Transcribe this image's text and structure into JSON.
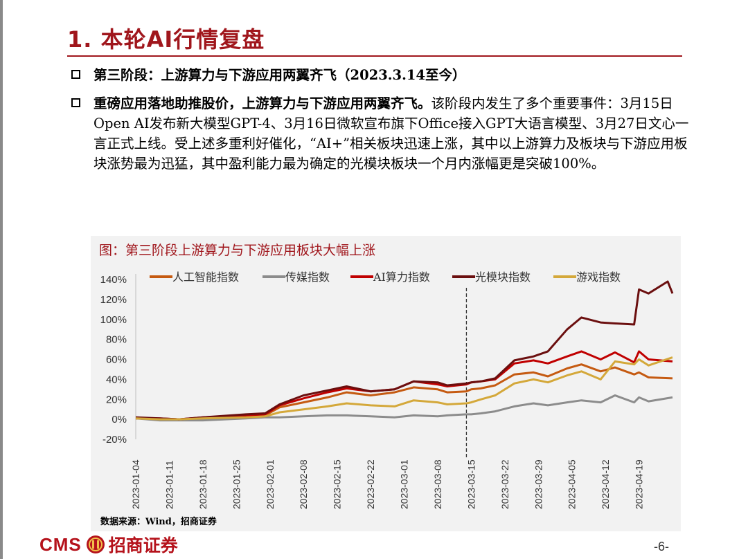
{
  "slide": {
    "title": "1. 本轮AI行情复盘"
  },
  "bullets": {
    "b1": "第三阶段：上游算力与下游应用两翼齐飞（2023.3.14至今）",
    "b2_bold": "重磅应用落地助推股价，上游算力与下游应用两翼齐飞。",
    "b2_text": "该阶段内发生了多个重要事件：3月15日Open AI发布新大模型GPT-4、3月16日微软宣布旗下Office接入GPT大语言模型、3月27日文心一言正式上线。受上述多重利好催化，“AI+”相关板块迅速上涨，其中以上游算力及板块与下游应用板块涨势最为迅猛，其中盈利能力最为确定的光模块板块一个月内涨幅更是突破100%。"
  },
  "chart_title": "图：第三阶段上游算力与下游应用板块大幅上涨",
  "source": "数据来源：Wind，招商证券",
  "footer": {
    "logo_cms": "CMS",
    "logo_cn": "招商证券",
    "page": "-6-"
  },
  "chart_data": {
    "type": "line",
    "title": "图：第三阶段上游算力与下游应用板块大幅上涨",
    "xlabel": "",
    "ylabel": "",
    "x_ticks": [
      "2023-01-04",
      "2023-01-11",
      "2023-01-18",
      "2023-01-25",
      "2023-02-01",
      "2023-02-08",
      "2023-02-15",
      "2023-02-22",
      "2023-03-01",
      "2023-03-08",
      "2023-03-15",
      "2023-03-22",
      "2023-03-29",
      "2023-04-05",
      "2023-04-12",
      "2023-04-19"
    ],
    "x_range": [
      "2023-01-04",
      "2023-04-26"
    ],
    "y_ticks": [
      -20,
      0,
      20,
      40,
      60,
      80,
      100,
      120,
      140
    ],
    "y_tick_labels": [
      "-20%",
      "0%",
      "20%",
      "40%",
      "60%",
      "80%",
      "100%",
      "120%",
      "140%"
    ],
    "ylim": [
      -20,
      140
    ],
    "grid": false,
    "legend_position": "top",
    "marker_line": {
      "x": "2023-03-14",
      "style": "dashed"
    },
    "series": [
      {
        "name": "人工智能指数",
        "color": "#c55a11",
        "points": [
          [
            "2023-01-04",
            1
          ],
          [
            "2023-01-09",
            0
          ],
          [
            "2023-01-13",
            0
          ],
          [
            "2023-01-18",
            1
          ],
          [
            "2023-01-27",
            3
          ],
          [
            "2023-01-31",
            4
          ],
          [
            "2023-02-03",
            12
          ],
          [
            "2023-02-08",
            17
          ],
          [
            "2023-02-13",
            22
          ],
          [
            "2023-02-17",
            27
          ],
          [
            "2023-02-22",
            24
          ],
          [
            "2023-02-27",
            27
          ],
          [
            "2023-03-03",
            32
          ],
          [
            "2023-03-08",
            30
          ],
          [
            "2023-03-10",
            27
          ],
          [
            "2023-03-14",
            28
          ],
          [
            "2023-03-15",
            30
          ],
          [
            "2023-03-17",
            31
          ],
          [
            "2023-03-20",
            34
          ],
          [
            "2023-03-24",
            45
          ],
          [
            "2023-03-28",
            47
          ],
          [
            "2023-03-31",
            43
          ],
          [
            "2023-04-04",
            51
          ],
          [
            "2023-04-07",
            55
          ],
          [
            "2023-04-11",
            48
          ],
          [
            "2023-04-14",
            52
          ],
          [
            "2023-04-18",
            45
          ],
          [
            "2023-04-19",
            47
          ],
          [
            "2023-04-21",
            42
          ],
          [
            "2023-04-26",
            41
          ]
        ]
      },
      {
        "name": "传媒指数",
        "color": "#8c8c8c",
        "points": [
          [
            "2023-01-04",
            1
          ],
          [
            "2023-01-09",
            -1
          ],
          [
            "2023-01-13",
            -1
          ],
          [
            "2023-01-18",
            -1
          ],
          [
            "2023-01-27",
            1
          ],
          [
            "2023-01-31",
            2
          ],
          [
            "2023-02-03",
            2
          ],
          [
            "2023-02-08",
            3
          ],
          [
            "2023-02-13",
            4
          ],
          [
            "2023-02-17",
            4
          ],
          [
            "2023-02-22",
            3
          ],
          [
            "2023-02-27",
            2
          ],
          [
            "2023-03-03",
            4
          ],
          [
            "2023-03-08",
            3
          ],
          [
            "2023-03-10",
            4
          ],
          [
            "2023-03-14",
            5
          ],
          [
            "2023-03-15",
            5
          ],
          [
            "2023-03-17",
            6
          ],
          [
            "2023-03-20",
            8
          ],
          [
            "2023-03-24",
            13
          ],
          [
            "2023-03-28",
            16
          ],
          [
            "2023-03-31",
            14
          ],
          [
            "2023-04-04",
            17
          ],
          [
            "2023-04-07",
            19
          ],
          [
            "2023-04-11",
            17
          ],
          [
            "2023-04-14",
            24
          ],
          [
            "2023-04-18",
            17
          ],
          [
            "2023-04-19",
            22
          ],
          [
            "2023-04-21",
            18
          ],
          [
            "2023-04-26",
            22
          ]
        ]
      },
      {
        "name": "AI算力指数",
        "color": "#c00000",
        "points": [
          [
            "2023-01-04",
            1
          ],
          [
            "2023-01-09",
            1
          ],
          [
            "2023-01-13",
            0
          ],
          [
            "2023-01-18",
            2
          ],
          [
            "2023-01-27",
            4
          ],
          [
            "2023-01-31",
            5
          ],
          [
            "2023-02-03",
            14
          ],
          [
            "2023-02-08",
            21
          ],
          [
            "2023-02-13",
            27
          ],
          [
            "2023-02-17",
            31
          ],
          [
            "2023-02-22",
            28
          ],
          [
            "2023-02-27",
            30
          ],
          [
            "2023-03-03",
            38
          ],
          [
            "2023-03-08",
            35
          ],
          [
            "2023-03-10",
            33
          ],
          [
            "2023-03-14",
            35
          ],
          [
            "2023-03-15",
            37
          ],
          [
            "2023-03-17",
            38
          ],
          [
            "2023-03-20",
            40
          ],
          [
            "2023-03-24",
            56
          ],
          [
            "2023-03-28",
            59
          ],
          [
            "2023-03-31",
            56
          ],
          [
            "2023-04-04",
            63
          ],
          [
            "2023-04-07",
            68
          ],
          [
            "2023-04-11",
            60
          ],
          [
            "2023-04-14",
            67
          ],
          [
            "2023-04-18",
            57
          ],
          [
            "2023-04-19",
            68
          ],
          [
            "2023-04-21",
            60
          ],
          [
            "2023-04-26",
            58
          ]
        ]
      },
      {
        "name": "光模块指数",
        "color": "#6b0f0f",
        "points": [
          [
            "2023-01-04",
            2
          ],
          [
            "2023-01-09",
            1
          ],
          [
            "2023-01-13",
            0
          ],
          [
            "2023-01-18",
            2
          ],
          [
            "2023-01-27",
            5
          ],
          [
            "2023-01-31",
            6
          ],
          [
            "2023-02-03",
            15
          ],
          [
            "2023-02-08",
            24
          ],
          [
            "2023-02-13",
            29
          ],
          [
            "2023-02-17",
            33
          ],
          [
            "2023-02-22",
            28
          ],
          [
            "2023-02-27",
            30
          ],
          [
            "2023-03-03",
            38
          ],
          [
            "2023-03-08",
            37
          ],
          [
            "2023-03-10",
            34
          ],
          [
            "2023-03-14",
            36
          ],
          [
            "2023-03-15",
            37
          ],
          [
            "2023-03-17",
            38
          ],
          [
            "2023-03-20",
            41
          ],
          [
            "2023-03-24",
            59
          ],
          [
            "2023-03-28",
            63
          ],
          [
            "2023-03-31",
            68
          ],
          [
            "2023-04-04",
            90
          ],
          [
            "2023-04-07",
            102
          ],
          [
            "2023-04-11",
            97
          ],
          [
            "2023-04-14",
            96
          ],
          [
            "2023-04-18",
            95
          ],
          [
            "2023-04-19",
            130
          ],
          [
            "2023-04-21",
            126
          ],
          [
            "2023-04-25",
            138
          ],
          [
            "2023-04-26",
            126
          ]
        ]
      },
      {
        "name": "游戏指数",
        "color": "#d4a83a",
        "points": [
          [
            "2023-01-04",
            1
          ],
          [
            "2023-01-09",
            0
          ],
          [
            "2023-01-13",
            0
          ],
          [
            "2023-01-18",
            1
          ],
          [
            "2023-01-27",
            2
          ],
          [
            "2023-01-31",
            3
          ],
          [
            "2023-02-03",
            7
          ],
          [
            "2023-02-08",
            10
          ],
          [
            "2023-02-13",
            13
          ],
          [
            "2023-02-17",
            16
          ],
          [
            "2023-02-22",
            14
          ],
          [
            "2023-02-27",
            13
          ],
          [
            "2023-03-03",
            19
          ],
          [
            "2023-03-08",
            17
          ],
          [
            "2023-03-10",
            15
          ],
          [
            "2023-03-14",
            16
          ],
          [
            "2023-03-15",
            17
          ],
          [
            "2023-03-17",
            20
          ],
          [
            "2023-03-20",
            24
          ],
          [
            "2023-03-24",
            36
          ],
          [
            "2023-03-28",
            40
          ],
          [
            "2023-03-31",
            37
          ],
          [
            "2023-04-04",
            44
          ],
          [
            "2023-04-07",
            48
          ],
          [
            "2023-04-11",
            40
          ],
          [
            "2023-04-14",
            58
          ],
          [
            "2023-04-18",
            55
          ],
          [
            "2023-04-19",
            60
          ],
          [
            "2023-04-21",
            54
          ],
          [
            "2023-04-26",
            62
          ]
        ]
      }
    ]
  }
}
